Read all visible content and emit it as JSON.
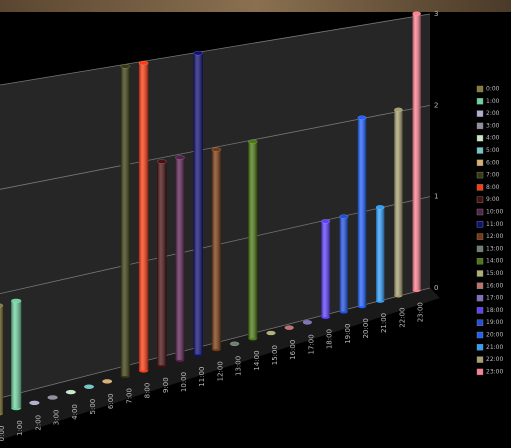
{
  "chart_data": {
    "type": "bar",
    "categories": [
      "0:00",
      "1:00",
      "2:00",
      "3:00",
      "4:00",
      "5:00",
      "6:00",
      "7:00",
      "8:00",
      "9:00",
      "10:00",
      "11:00",
      "12:00",
      "13:00",
      "14:00",
      "15:00",
      "16:00",
      "17:00",
      "18:00",
      "19:00",
      "20:00",
      "21:00",
      "22:00",
      "23:00"
    ],
    "values": [
      1,
      1,
      0,
      0,
      0,
      0,
      0,
      3,
      3,
      2,
      2,
      3,
      2,
      0,
      2,
      0,
      0,
      0,
      1,
      1,
      2,
      1,
      2,
      3
    ],
    "colors": [
      "#8a7a3a",
      "#6fd3a0",
      "#b0b0d0",
      "#9090a0",
      "#c8e8c8",
      "#70c8c8",
      "#d8b070",
      "#3a3a10",
      "#ff3a10",
      "#4a1010",
      "#5a2050",
      "#10107a",
      "#7a3a10",
      "#708070",
      "#4a7a10",
      "#b0b070",
      "#c07070",
      "#8070c0",
      "#6040ff",
      "#2050e0",
      "#2060ff",
      "#30a0ff",
      "#a8a070",
      "#ff8090"
    ],
    "ylim": [
      0,
      3
    ],
    "yticks": [
      0,
      1,
      2,
      3
    ],
    "grid": true,
    "legend": "right"
  }
}
